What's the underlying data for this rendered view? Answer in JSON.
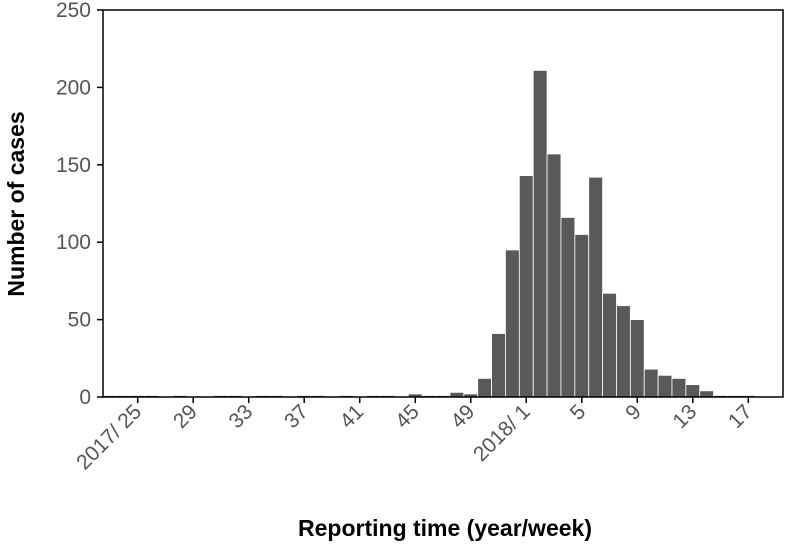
{
  "chart_data": {
    "type": "bar",
    "x_label": "Reporting time (year/week)",
    "y_label": "Number of cases",
    "categories": [
      null,
      null,
      "2017/ 25",
      null,
      null,
      null,
      "29",
      null,
      null,
      null,
      "33",
      null,
      null,
      null,
      "37",
      null,
      null,
      null,
      "41",
      null,
      null,
      null,
      "45",
      null,
      null,
      null,
      "49",
      null,
      null,
      null,
      "2018/ 1",
      null,
      null,
      null,
      "5",
      null,
      null,
      null,
      "9",
      null,
      null,
      null,
      "13",
      null,
      null,
      null,
      "17",
      null,
      null
    ],
    "values": [
      1,
      1,
      1,
      1,
      0,
      1,
      0,
      0,
      1,
      1,
      0,
      1,
      1,
      0,
      1,
      1,
      0,
      1,
      0,
      1,
      1,
      0,
      2,
      1,
      1,
      3,
      2,
      12,
      41,
      95,
      143,
      211,
      157,
      116,
      105,
      142,
      67,
      59,
      50,
      18,
      14,
      12,
      8,
      4,
      1,
      1,
      1,
      0,
      0
    ],
    "color": "#595959",
    "ylim": [
      0,
      250
    ],
    "yticks": [
      0,
      50,
      100,
      150,
      200,
      250
    ]
  }
}
